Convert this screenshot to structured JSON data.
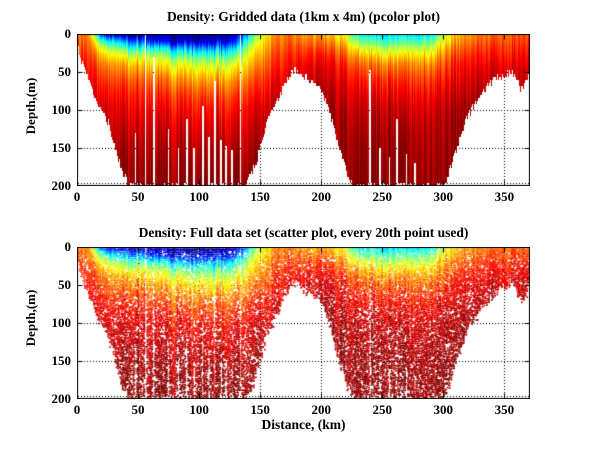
{
  "chart_data": [
    {
      "type": "pcolor",
      "title": "Density: Gridded data (1km x 4m) (pcolor plot)",
      "xlabel": "",
      "ylabel": "Depth,(m)",
      "xlim": [
        0,
        371
      ],
      "ylim": [
        0,
        200
      ],
      "y_axis_reversed": true,
      "xticks": [
        0,
        50,
        100,
        150,
        200,
        250,
        300,
        350
      ],
      "yticks": [
        0,
        50,
        100,
        150,
        200
      ],
      "grid": "dotted",
      "legend": "none",
      "colormap": "jet",
      "colormap_key_colors": {
        "low_density_surface": "#00008f",
        "blue": "#0020ff",
        "cyan": "#00d8ff",
        "yellow": "#f0ff00",
        "orange": "#ff8000",
        "red": "#ff2000",
        "high_density_deep": "#800000",
        "no_data": "#ffffff"
      },
      "field": {
        "x_km": [
          0,
          10,
          20,
          30,
          40,
          50,
          60,
          70,
          80,
          90,
          100,
          110,
          120,
          130,
          140,
          150,
          160,
          170,
          180,
          190,
          200,
          210,
          220,
          230,
          240,
          250,
          260,
          270,
          280,
          290,
          300,
          310,
          320,
          330,
          340,
          350,
          360,
          370
        ],
        "depth_m": [
          0,
          10,
          20,
          30,
          40,
          60,
          80,
          100,
          130,
          160,
          200
        ],
        "density_norm_columns": [
          [
            0.78,
            0.8,
            0.83,
            0.85,
            0.87,
            0.9,
            0.92,
            0.95,
            0.97,
            0.99,
            1.0
          ],
          [
            0.74,
            0.77,
            0.8,
            0.83,
            0.85,
            0.88,
            0.91,
            0.94,
            0.96,
            0.98,
            1.0
          ],
          [
            0.15,
            0.45,
            0.62,
            0.7,
            0.77,
            0.84,
            0.89,
            0.93,
            0.96,
            0.98,
            1.0
          ],
          [
            0.08,
            0.35,
            0.55,
            0.66,
            0.74,
            0.82,
            0.88,
            0.92,
            0.95,
            0.98,
            1.0
          ],
          [
            0.06,
            0.3,
            0.5,
            0.62,
            0.72,
            0.81,
            0.87,
            0.91,
            0.95,
            0.98,
            1.0
          ],
          [
            0.05,
            0.25,
            0.46,
            0.6,
            0.7,
            0.8,
            0.86,
            0.9,
            0.94,
            0.97,
            1.0
          ],
          [
            0.04,
            0.15,
            0.41,
            0.57,
            0.66,
            0.78,
            0.85,
            0.9,
            0.94,
            0.97,
            1.0
          ],
          [
            0.03,
            0.1,
            0.37,
            0.53,
            0.63,
            0.76,
            0.83,
            0.89,
            0.93,
            0.97,
            1.0
          ],
          [
            0.03,
            0.08,
            0.33,
            0.5,
            0.61,
            0.74,
            0.82,
            0.88,
            0.93,
            0.96,
            1.0
          ],
          [
            0.02,
            0.07,
            0.3,
            0.47,
            0.59,
            0.72,
            0.81,
            0.87,
            0.92,
            0.96,
            1.0
          ],
          [
            0.02,
            0.06,
            0.28,
            0.45,
            0.57,
            0.71,
            0.8,
            0.86,
            0.92,
            0.96,
            1.0
          ],
          [
            0.02,
            0.06,
            0.28,
            0.45,
            0.56,
            0.7,
            0.79,
            0.86,
            0.91,
            0.95,
            1.0
          ],
          [
            0.03,
            0.08,
            0.3,
            0.46,
            0.57,
            0.71,
            0.8,
            0.86,
            0.92,
            0.96,
            1.0
          ],
          [
            0.05,
            0.15,
            0.36,
            0.5,
            0.61,
            0.73,
            0.81,
            0.87,
            0.92,
            0.96,
            1.0
          ],
          [
            0.3,
            0.46,
            0.56,
            0.63,
            0.68,
            0.77,
            0.84,
            0.89,
            0.93,
            0.96,
            1.0
          ],
          [
            0.56,
            0.61,
            0.66,
            0.7,
            0.74,
            0.81,
            0.86,
            0.91,
            0.94,
            0.97,
            1.0
          ],
          [
            0.7,
            0.73,
            0.76,
            0.79,
            0.81,
            0.86,
            0.9,
            0.93,
            0.96,
            0.98,
            1.0
          ],
          [
            0.75,
            0.78,
            0.8,
            0.83,
            0.85,
            0.89,
            0.92,
            0.95,
            0.97,
            0.99,
            1.0
          ],
          [
            0.73,
            0.77,
            0.81,
            0.84,
            0.87,
            0.91,
            0.94,
            0.96,
            0.98,
            1.0,
            1.0
          ],
          [
            0.71,
            0.76,
            0.81,
            0.85,
            0.88,
            0.92,
            0.95,
            0.97,
            0.99,
            1.0,
            1.0
          ],
          [
            0.69,
            0.75,
            0.8,
            0.85,
            0.88,
            0.92,
            0.95,
            0.97,
            0.99,
            1.0,
            1.0
          ],
          [
            0.66,
            0.72,
            0.78,
            0.83,
            0.87,
            0.91,
            0.94,
            0.96,
            0.98,
            1.0,
            1.0
          ],
          [
            0.61,
            0.68,
            0.75,
            0.8,
            0.85,
            0.9,
            0.93,
            0.96,
            0.98,
            0.99,
            1.0
          ],
          [
            0.38,
            0.5,
            0.63,
            0.72,
            0.79,
            0.86,
            0.91,
            0.94,
            0.97,
            0.99,
            1.0
          ],
          [
            0.35,
            0.47,
            0.59,
            0.69,
            0.76,
            0.84,
            0.9,
            0.93,
            0.96,
            0.98,
            1.0
          ],
          [
            0.33,
            0.44,
            0.56,
            0.66,
            0.74,
            0.83,
            0.89,
            0.93,
            0.96,
            0.98,
            1.0
          ],
          [
            0.33,
            0.42,
            0.54,
            0.64,
            0.73,
            0.82,
            0.88,
            0.92,
            0.95,
            0.98,
            1.0
          ],
          [
            0.33,
            0.44,
            0.56,
            0.66,
            0.74,
            0.82,
            0.88,
            0.92,
            0.96,
            0.98,
            1.0
          ],
          [
            0.34,
            0.46,
            0.58,
            0.68,
            0.75,
            0.83,
            0.89,
            0.93,
            0.96,
            0.98,
            1.0
          ],
          [
            0.4,
            0.52,
            0.62,
            0.7,
            0.77,
            0.85,
            0.9,
            0.94,
            0.97,
            0.98,
            1.0
          ],
          [
            0.55,
            0.62,
            0.7,
            0.76,
            0.8,
            0.87,
            0.92,
            0.95,
            0.97,
            0.99,
            1.0
          ],
          [
            0.68,
            0.72,
            0.77,
            0.81,
            0.85,
            0.89,
            0.93,
            0.96,
            0.98,
            1.0,
            1.0
          ],
          [
            0.72,
            0.76,
            0.8,
            0.84,
            0.87,
            0.91,
            0.94,
            0.97,
            0.99,
            1.0,
            1.0
          ],
          [
            0.75,
            0.78,
            0.82,
            0.85,
            0.88,
            0.92,
            0.95,
            0.97,
            0.99,
            1.0,
            1.0
          ],
          [
            0.76,
            0.8,
            0.83,
            0.86,
            0.89,
            0.93,
            0.96,
            0.98,
            1.0,
            1.0,
            1.0
          ],
          [
            0.78,
            0.81,
            0.84,
            0.87,
            0.9,
            0.93,
            0.96,
            0.98,
            1.0,
            1.0,
            1.0
          ],
          [
            0.8,
            0.82,
            0.85,
            0.88,
            0.91,
            0.94,
            0.96,
            0.98,
            1.0,
            1.0,
            1.0
          ],
          [
            0.8,
            0.83,
            0.86,
            0.89,
            0.91,
            0.94,
            0.97,
            0.99,
            1.0,
            1.0,
            1.0
          ]
        ]
      },
      "bathymetry_km_depth": [
        [
          0,
          12
        ],
        [
          3,
          35
        ],
        [
          6,
          48
        ],
        [
          10,
          60
        ],
        [
          14,
          80
        ],
        [
          18,
          95
        ],
        [
          22,
          105
        ],
        [
          26,
          118
        ],
        [
          30,
          140
        ],
        [
          34,
          165
        ],
        [
          38,
          185
        ],
        [
          43,
          200
        ],
        [
          138,
          200
        ],
        [
          146,
          172
        ],
        [
          151,
          145
        ],
        [
          156,
          115
        ],
        [
          161,
          96
        ],
        [
          166,
          82
        ],
        [
          171,
          62
        ],
        [
          176,
          52
        ],
        [
          180,
          48
        ],
        [
          185,
          55
        ],
        [
          190,
          60
        ],
        [
          196,
          66
        ],
        [
          201,
          76
        ],
        [
          206,
          96
        ],
        [
          211,
          128
        ],
        [
          216,
          155
        ],
        [
          220,
          178
        ],
        [
          224,
          196
        ],
        [
          228,
          200
        ],
        [
          297,
          200
        ],
        [
          303,
          192
        ],
        [
          308,
          166
        ],
        [
          313,
          140
        ],
        [
          318,
          116
        ],
        [
          323,
          100
        ],
        [
          328,
          88
        ],
        [
          333,
          76
        ],
        [
          338,
          66
        ],
        [
          343,
          60
        ],
        [
          348,
          55
        ],
        [
          353,
          51
        ],
        [
          357,
          48
        ],
        [
          360,
          57
        ],
        [
          363,
          70
        ],
        [
          365,
          74
        ],
        [
          367,
          62
        ],
        [
          370,
          52
        ]
      ],
      "data_gap_columns_km_topdepth": [
        [
          48,
          130
        ],
        [
          56,
          0
        ],
        [
          63,
          30
        ],
        [
          75,
          125
        ],
        [
          83,
          150
        ],
        [
          90,
          112
        ],
        [
          96,
          150
        ],
        [
          103,
          95
        ],
        [
          108,
          135
        ],
        [
          113,
          62
        ],
        [
          118,
          140
        ],
        [
          122,
          148
        ],
        [
          127,
          152
        ],
        [
          134,
          0
        ],
        [
          240,
          48
        ],
        [
          248,
          150
        ],
        [
          256,
          162
        ],
        [
          262,
          112
        ],
        [
          270,
          158
        ],
        [
          277,
          170
        ]
      ]
    },
    {
      "type": "scatter",
      "title": "Density: Full data set (scatter plot, every 20th point used)",
      "xlabel": "Distance, (km)",
      "ylabel": "Depth,(m)",
      "xlim": [
        0,
        371
      ],
      "ylim": [
        0,
        200
      ],
      "y_axis_reversed": true,
      "xticks": [
        0,
        50,
        100,
        150,
        200,
        250,
        300,
        350
      ],
      "yticks": [
        0,
        50,
        100,
        150,
        200
      ],
      "grid": "dotted",
      "legend": "none",
      "colormap": "jet",
      "uses_field_of_chart_index": 0
    }
  ]
}
